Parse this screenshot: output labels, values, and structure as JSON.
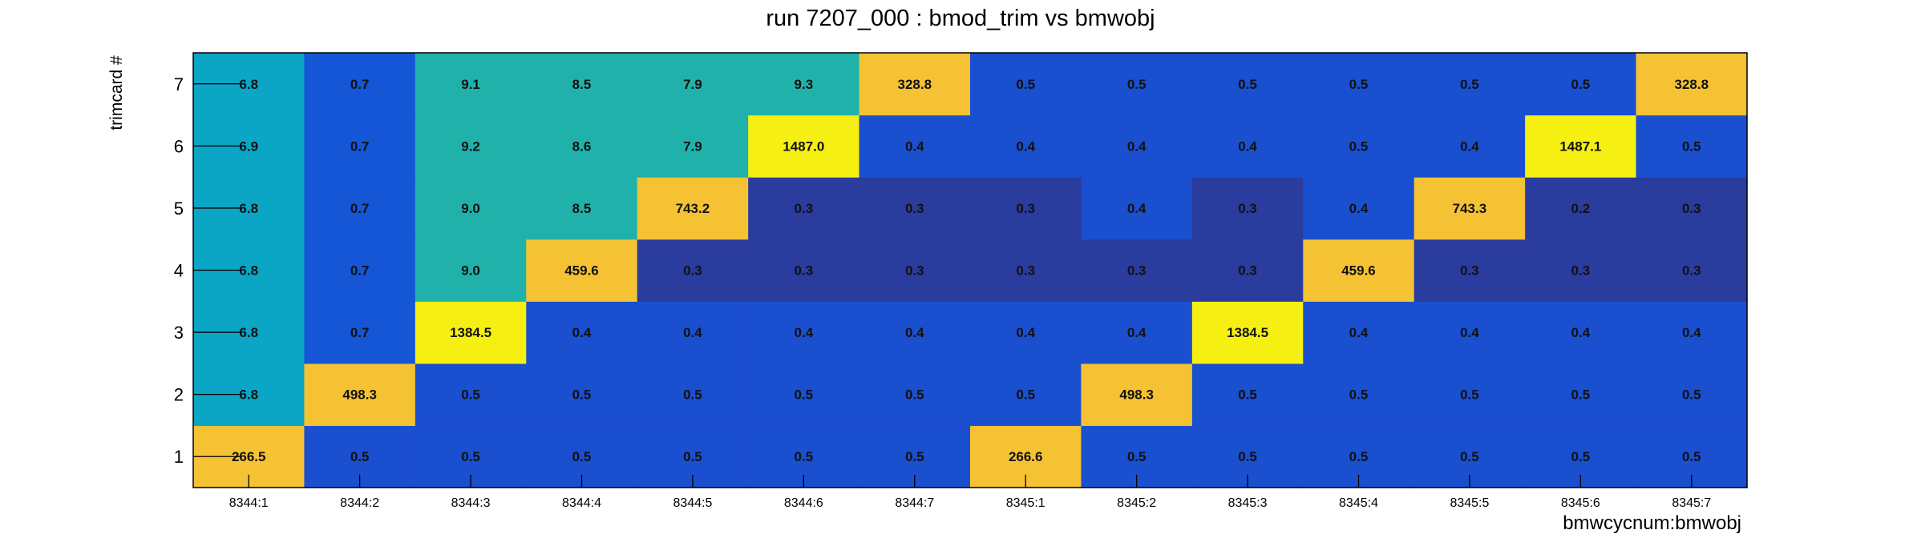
{
  "chart_data": {
    "type": "heatmap",
    "title": "run 7207_000 : bmod_trim vs bmwobj",
    "xlabel": "bmwcycnum:bmwobj",
    "ylabel": "trimcard #",
    "x_categories": [
      "8344:1",
      "8344:2",
      "8344:3",
      "8344:4",
      "8344:5",
      "8344:6",
      "8344:7",
      "8345:1",
      "8345:2",
      "8345:3",
      "8345:4",
      "8345:5",
      "8345:6",
      "8345:7"
    ],
    "y_categories": [
      "1",
      "2",
      "3",
      "4",
      "5",
      "6",
      "7"
    ],
    "values": [
      [
        "266.5",
        "0.5",
        "0.5",
        "0.5",
        "0.5",
        "0.5",
        "0.5",
        "266.6",
        "0.5",
        "0.5",
        "0.5",
        "0.5",
        "0.5",
        "0.5"
      ],
      [
        "6.8",
        "498.3",
        "0.5",
        "0.5",
        "0.5",
        "0.5",
        "0.5",
        "0.5",
        "498.3",
        "0.5",
        "0.5",
        "0.5",
        "0.5",
        "0.5"
      ],
      [
        "6.8",
        "0.7",
        "1384.5",
        "0.4",
        "0.4",
        "0.4",
        "0.4",
        "0.4",
        "0.4",
        "1384.5",
        "0.4",
        "0.4",
        "0.4",
        "0.4"
      ],
      [
        "6.8",
        "0.7",
        "9.0",
        "459.6",
        "0.3",
        "0.3",
        "0.3",
        "0.3",
        "0.3",
        "0.3",
        "459.6",
        "0.3",
        "0.3",
        "0.3"
      ],
      [
        "6.8",
        "0.7",
        "9.0",
        "8.5",
        "743.2",
        "0.3",
        "0.3",
        "0.3",
        "0.4",
        "0.3",
        "0.4",
        "743.3",
        "0.2",
        "0.3"
      ],
      [
        "6.9",
        "0.7",
        "9.2",
        "8.6",
        "7.9",
        "1487.0",
        "0.4",
        "0.4",
        "0.4",
        "0.4",
        "0.5",
        "0.4",
        "1487.1",
        "0.5"
      ],
      [
        "6.8",
        "0.7",
        "9.1",
        "8.5",
        "7.9",
        "9.3",
        "328.8",
        "0.5",
        "0.5",
        "0.5",
        "0.5",
        "0.5",
        "0.5",
        "328.8"
      ]
    ],
    "color_scale": {
      "low": "#2a3c9e",
      "mid_low": "#1556d6",
      "mid": "#0ba5c6",
      "mid_high": "#20b2aa",
      "high_mid": "#f5c234",
      "high": "#f6f012"
    }
  }
}
